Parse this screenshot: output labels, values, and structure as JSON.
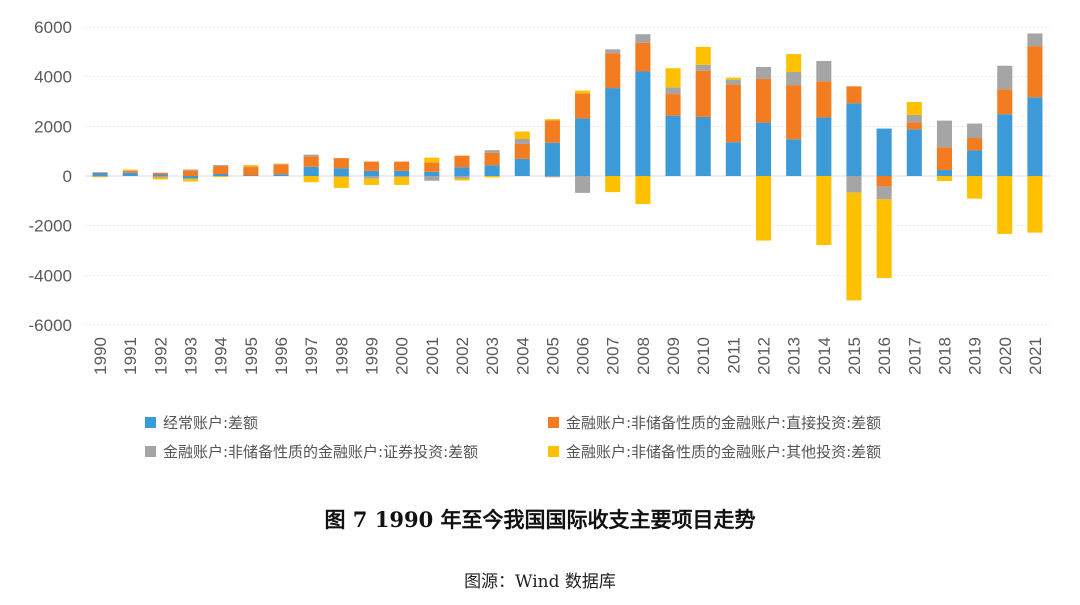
{
  "figure": {
    "title": "图 7 1990 年至今我国国际收支主要项目走势",
    "source": "图源：Wind 数据库"
  },
  "chart_data": {
    "type": "bar",
    "stacked": true,
    "categories": [
      "1990",
      "1991",
      "1992",
      "1993",
      "1994",
      "1995",
      "1996",
      "1997",
      "1998",
      "1999",
      "2000",
      "2001",
      "2002",
      "2003",
      "2004",
      "2005",
      "2006",
      "2007",
      "2008",
      "2009",
      "2010",
      "2011",
      "2012",
      "2013",
      "2014",
      "2015",
      "2016",
      "2017",
      "2018",
      "2019",
      "2020",
      "2021"
    ],
    "ylim": [
      -6000,
      6000
    ],
    "yticks": [
      -6000,
      -4000,
      -2000,
      0,
      2000,
      4000,
      6000
    ],
    "grid": true,
    "legend_position": "bottom",
    "series": [
      {
        "name": "经常账户:差额",
        "color": "#3c9ad8",
        "values": [
          120,
          130,
          60,
          -110,
          80,
          20,
          70,
          370,
          310,
          210,
          210,
          170,
          350,
          430,
          690,
          1340,
          2320,
          3540,
          4210,
          2430,
          2380,
          1360,
          2150,
          1480,
          2360,
          2930,
          1910,
          1880,
          240,
          1030,
          2490,
          3170
        ]
      },
      {
        "name": "金融账户:非储备性质的金融账户:直接投资:差额",
        "color": "#f47c20",
        "values": [
          30,
          80,
          70,
          230,
          320,
          340,
          390,
          420,
          410,
          370,
          370,
          370,
          470,
          500,
          600,
          900,
          1000,
          1400,
          1150,
          870,
          1860,
          2320,
          1760,
          2180,
          1450,
          680,
          -420,
          280,
          920,
          500,
          1000,
          2060
        ]
      },
      {
        "name": "金融账户:非储备性质的金融账户:证券投资:差额",
        "color": "#a5a5a5",
        "values": [
          -20,
          20,
          -60,
          30,
          40,
          20,
          20,
          70,
          -40,
          -110,
          -40,
          -190,
          -100,
          110,
          200,
          -50,
          -680,
          160,
          350,
          270,
          240,
          200,
          480,
          530,
          820,
          -670,
          -520,
          300,
          1070,
          580,
          950,
          510
        ]
      },
      {
        "name": "金融账户:非储备性质的金融账户:其他投资:差额",
        "color": "#ffc000",
        "values": [
          -30,
          30,
          -80,
          -110,
          -40,
          60,
          20,
          -250,
          -440,
          -250,
          -320,
          200,
          -80,
          -60,
          300,
          50,
          120,
          -650,
          -1130,
          770,
          720,
          80,
          -2600,
          720,
          -2780,
          -4340,
          -3170,
          520,
          -200,
          -910,
          -2330,
          -2280
        ]
      }
    ]
  }
}
